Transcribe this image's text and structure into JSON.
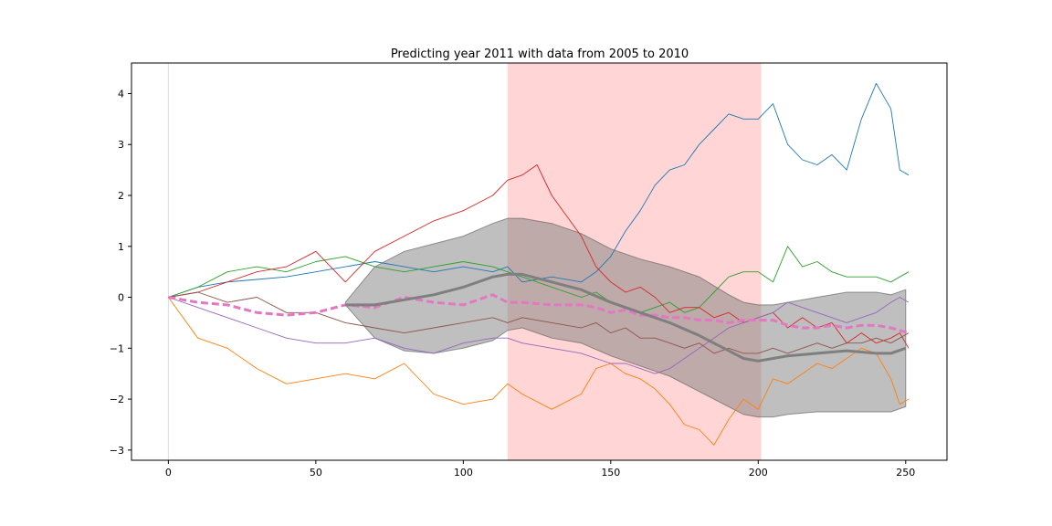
{
  "chart_data": {
    "type": "line",
    "title": "Predicting year 2011 with data from 2005 to 2010",
    "xlabel": "",
    "ylabel": "",
    "xlim": [
      -12.5,
      264
    ],
    "ylim": [
      -3.2,
      4.6
    ],
    "xticks": [
      0,
      50,
      100,
      150,
      200,
      250
    ],
    "yticks": [
      -3,
      -2,
      -1,
      0,
      1,
      2,
      3,
      4
    ],
    "grid": false,
    "legend": "none",
    "highlight_span": {
      "x": [
        115,
        201
      ],
      "color": "#ffb3b3"
    },
    "vertical_marker": {
      "x": 0,
      "color": "#dddddd"
    },
    "series": [
      {
        "color": "#1f77b4",
        "x": [
          0,
          10,
          20,
          30,
          40,
          50,
          60,
          70,
          80,
          90,
          100,
          110,
          115,
          120,
          130,
          140,
          145,
          150,
          155,
          160,
          165,
          170,
          175,
          180,
          185,
          190,
          195,
          200,
          205,
          210,
          215,
          220,
          225,
          230,
          235,
          240,
          245,
          248,
          251
        ],
        "y": [
          0,
          0.2,
          0.3,
          0.35,
          0.4,
          0.5,
          0.6,
          0.7,
          0.6,
          0.5,
          0.6,
          0.5,
          0.6,
          0.3,
          0.4,
          0.3,
          0.5,
          0.8,
          1.3,
          1.7,
          2.2,
          2.5,
          2.6,
          3.0,
          3.3,
          3.6,
          3.5,
          3.5,
          3.8,
          3.0,
          2.7,
          2.6,
          2.8,
          2.5,
          3.5,
          4.2,
          3.7,
          2.5,
          2.4
        ]
      },
      {
        "color": "#ff7f0e",
        "x": [
          0,
          10,
          20,
          30,
          40,
          50,
          60,
          70,
          80,
          90,
          100,
          110,
          115,
          120,
          130,
          140,
          145,
          150,
          155,
          160,
          165,
          170,
          175,
          180,
          185,
          190,
          195,
          200,
          205,
          210,
          215,
          220,
          225,
          230,
          235,
          240,
          245,
          248,
          251
        ],
        "y": [
          0,
          -0.8,
          -1.0,
          -1.4,
          -1.7,
          -1.6,
          -1.5,
          -1.6,
          -1.3,
          -1.9,
          -2.1,
          -2.0,
          -1.7,
          -1.9,
          -2.2,
          -1.9,
          -1.4,
          -1.3,
          -1.5,
          -1.6,
          -1.8,
          -2.1,
          -2.5,
          -2.6,
          -2.9,
          -2.4,
          -2.0,
          -2.2,
          -1.6,
          -1.7,
          -1.5,
          -1.3,
          -1.4,
          -1.2,
          -1.0,
          -1.1,
          -1.6,
          -2.1,
          -2.0
        ]
      },
      {
        "color": "#2ca02c",
        "x": [
          0,
          10,
          20,
          30,
          40,
          50,
          60,
          70,
          80,
          90,
          100,
          110,
          115,
          120,
          130,
          140,
          145,
          150,
          155,
          160,
          165,
          170,
          175,
          180,
          185,
          190,
          195,
          200,
          205,
          210,
          215,
          220,
          225,
          230,
          235,
          240,
          245,
          248,
          251
        ],
        "y": [
          0,
          0.2,
          0.5,
          0.6,
          0.5,
          0.7,
          0.8,
          0.6,
          0.5,
          0.6,
          0.7,
          0.6,
          0.5,
          0.4,
          0.2,
          0.0,
          0.1,
          -0.1,
          -0.2,
          -0.3,
          -0.2,
          -0.1,
          -0.3,
          -0.2,
          0.1,
          0.4,
          0.5,
          0.5,
          0.3,
          1.0,
          0.6,
          0.7,
          0.5,
          0.4,
          0.4,
          0.4,
          0.3,
          0.4,
          0.5
        ]
      },
      {
        "color": "#d62728",
        "x": [
          0,
          10,
          20,
          30,
          40,
          50,
          60,
          70,
          80,
          90,
          100,
          110,
          115,
          120,
          125,
          130,
          140,
          145,
          150,
          155,
          160,
          165,
          170,
          175,
          180,
          185,
          190,
          195,
          200,
          205,
          210,
          215,
          220,
          225,
          230,
          235,
          240,
          245,
          248,
          251
        ],
        "y": [
          0,
          0.1,
          0.3,
          0.5,
          0.6,
          0.9,
          0.3,
          0.9,
          1.2,
          1.5,
          1.7,
          2.0,
          2.3,
          2.4,
          2.6,
          2.0,
          1.2,
          0.6,
          0.3,
          0.1,
          0.2,
          0.0,
          -0.3,
          -0.2,
          -0.2,
          -0.4,
          -0.3,
          -0.5,
          -0.4,
          -0.3,
          -0.6,
          -0.4,
          -0.6,
          -0.5,
          -0.9,
          -0.7,
          -0.9,
          -0.8,
          -0.7,
          -1.0
        ]
      },
      {
        "color": "#9467bd",
        "x": [
          0,
          10,
          20,
          30,
          40,
          50,
          60,
          70,
          80,
          90,
          100,
          110,
          115,
          120,
          130,
          140,
          145,
          150,
          155,
          160,
          165,
          170,
          175,
          180,
          185,
          190,
          195,
          200,
          205,
          210,
          215,
          220,
          225,
          230,
          235,
          240,
          245,
          248,
          251
        ],
        "y": [
          0,
          -0.2,
          -0.4,
          -0.6,
          -0.8,
          -0.9,
          -0.9,
          -0.8,
          -1.0,
          -1.1,
          -0.9,
          -0.8,
          -0.8,
          -0.9,
          -1.0,
          -1.1,
          -1.2,
          -1.3,
          -1.3,
          -1.4,
          -1.5,
          -1.4,
          -1.2,
          -1.0,
          -0.8,
          -0.6,
          -0.5,
          -0.4,
          -0.3,
          -0.1,
          -0.2,
          -0.3,
          -0.4,
          -0.5,
          -0.4,
          -0.3,
          -0.1,
          0.0,
          -0.1
        ]
      },
      {
        "color": "#8c564b",
        "x": [
          0,
          10,
          20,
          30,
          40,
          50,
          60,
          70,
          80,
          90,
          100,
          110,
          115,
          120,
          130,
          140,
          145,
          150,
          155,
          160,
          165,
          170,
          175,
          180,
          185,
          190,
          195,
          200,
          205,
          210,
          215,
          220,
          225,
          230,
          235,
          240,
          245,
          248,
          251
        ],
        "y": [
          0,
          0.1,
          -0.1,
          0.0,
          -0.3,
          -0.3,
          -0.5,
          -0.6,
          -0.7,
          -0.6,
          -0.5,
          -0.4,
          -0.5,
          -0.4,
          -0.5,
          -0.6,
          -0.5,
          -0.7,
          -0.6,
          -0.8,
          -0.8,
          -0.9,
          -1.0,
          -0.9,
          -1.1,
          -1.0,
          -1.1,
          -1.1,
          -1.0,
          -1.1,
          -1.0,
          -0.9,
          -1.0,
          -0.9,
          -0.9,
          -0.8,
          -0.9,
          -0.8,
          -0.7
        ]
      },
      {
        "color": "#e377c2",
        "style": "dashed",
        "x": [
          0,
          10,
          20,
          30,
          40,
          50,
          60,
          70,
          80,
          90,
          100,
          110,
          115,
          120,
          130,
          140,
          145,
          150,
          155,
          160,
          165,
          170,
          175,
          180,
          185,
          190,
          195,
          200,
          205,
          210,
          215,
          220,
          225,
          230,
          235,
          240,
          245,
          248,
          251
        ],
        "y": [
          0,
          -0.1,
          -0.15,
          -0.3,
          -0.35,
          -0.3,
          -0.15,
          -0.2,
          0.0,
          -0.1,
          -0.15,
          0.05,
          -0.1,
          -0.1,
          -0.15,
          -0.15,
          -0.2,
          -0.3,
          -0.25,
          -0.35,
          -0.35,
          -0.4,
          -0.4,
          -0.45,
          -0.45,
          -0.5,
          -0.45,
          -0.45,
          -0.45,
          -0.55,
          -0.6,
          -0.6,
          -0.55,
          -0.6,
          -0.55,
          -0.55,
          -0.6,
          -0.65,
          -0.7
        ]
      },
      {
        "color": "#7f7f7f",
        "style": "thick",
        "x": [
          60,
          70,
          80,
          90,
          100,
          110,
          115,
          120,
          130,
          140,
          150,
          160,
          170,
          180,
          190,
          195,
          200,
          205,
          210,
          220,
          230,
          240,
          245,
          250
        ],
        "y": [
          -0.15,
          -0.15,
          -0.05,
          0.05,
          0.2,
          0.4,
          0.45,
          0.45,
          0.3,
          0.15,
          -0.1,
          -0.3,
          -0.5,
          -0.75,
          -1.05,
          -1.2,
          -1.25,
          -1.2,
          -1.15,
          -1.1,
          -1.05,
          -1.1,
          -1.1,
          -1.0
        ]
      }
    ],
    "band": {
      "color": "#7f7f7f",
      "x": [
        60,
        70,
        80,
        90,
        100,
        110,
        115,
        120,
        130,
        140,
        150,
        160,
        170,
        180,
        190,
        195,
        200,
        205,
        210,
        220,
        230,
        240,
        245,
        250
      ],
      "upper": [
        -0.1,
        0.6,
        0.9,
        1.05,
        1.2,
        1.45,
        1.55,
        1.55,
        1.45,
        1.25,
        0.95,
        0.75,
        0.6,
        0.4,
        0.05,
        -0.1,
        -0.15,
        -0.15,
        -0.1,
        0.0,
        0.1,
        0.1,
        0.05,
        0.15
      ],
      "lower": [
        -0.15,
        -0.8,
        -1.05,
        -1.1,
        -1.0,
        -0.85,
        -0.65,
        -0.6,
        -0.8,
        -0.9,
        -1.15,
        -1.35,
        -1.55,
        -1.85,
        -2.15,
        -2.3,
        -2.35,
        -2.35,
        -2.3,
        -2.25,
        -2.25,
        -2.25,
        -2.25,
        -2.15
      ]
    }
  }
}
